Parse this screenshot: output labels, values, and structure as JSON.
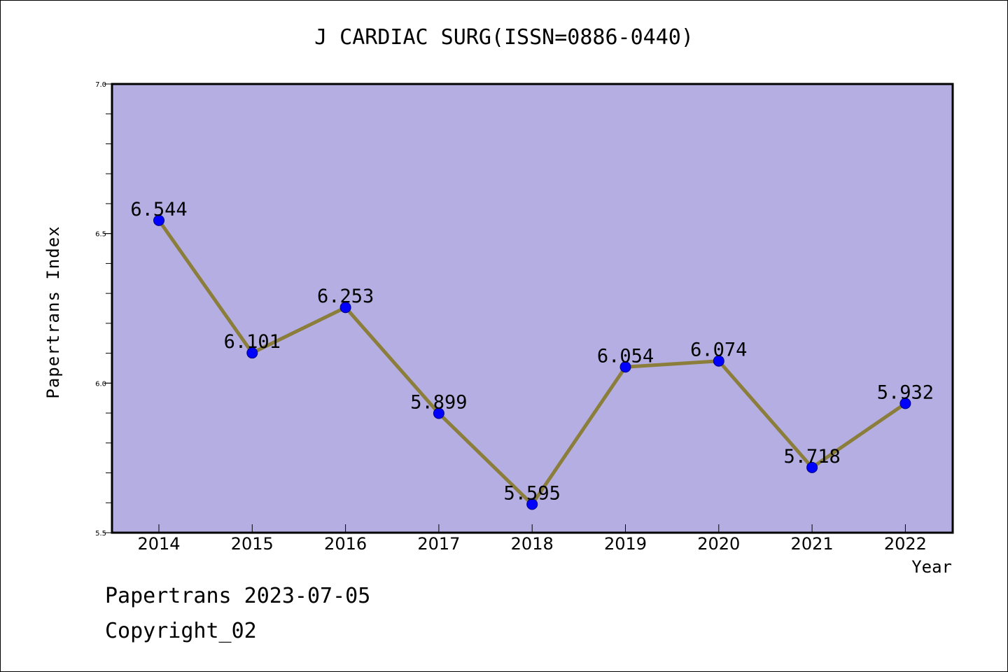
{
  "title": "J CARDIAC SURG(ISSN=0886-0440)",
  "footer": {
    "date_line": "Papertrans 2023-07-05",
    "copyright": "Copyright_02"
  },
  "colors": {
    "plot_background": "#b5aee2",
    "line": "#8b7d3a",
    "marker": "#0000ff"
  },
  "chart_data": {
    "type": "line",
    "title": "J CARDIAC SURG(ISSN=0886-0440)",
    "xlabel": "Year",
    "ylabel": "Papertrans Index",
    "categories": [
      "2014",
      "2015",
      "2016",
      "2017",
      "2018",
      "2019",
      "2020",
      "2021",
      "2022"
    ],
    "series": [
      {
        "values": [
          6.544,
          6.101,
          6.253,
          5.899,
          5.595,
          6.054,
          6.074,
          5.718,
          5.932
        ],
        "labels": [
          "6.544",
          "6.101",
          "6.253",
          "5.899",
          "5.595",
          "6.054",
          "6.074",
          "5.718",
          "5.932"
        ]
      }
    ],
    "ylim": [
      5.5,
      7.0
    ],
    "yticks": [
      "5.5",
      "6.0",
      "6.5",
      "7.0"
    ],
    "grid": false,
    "legend": "none"
  }
}
